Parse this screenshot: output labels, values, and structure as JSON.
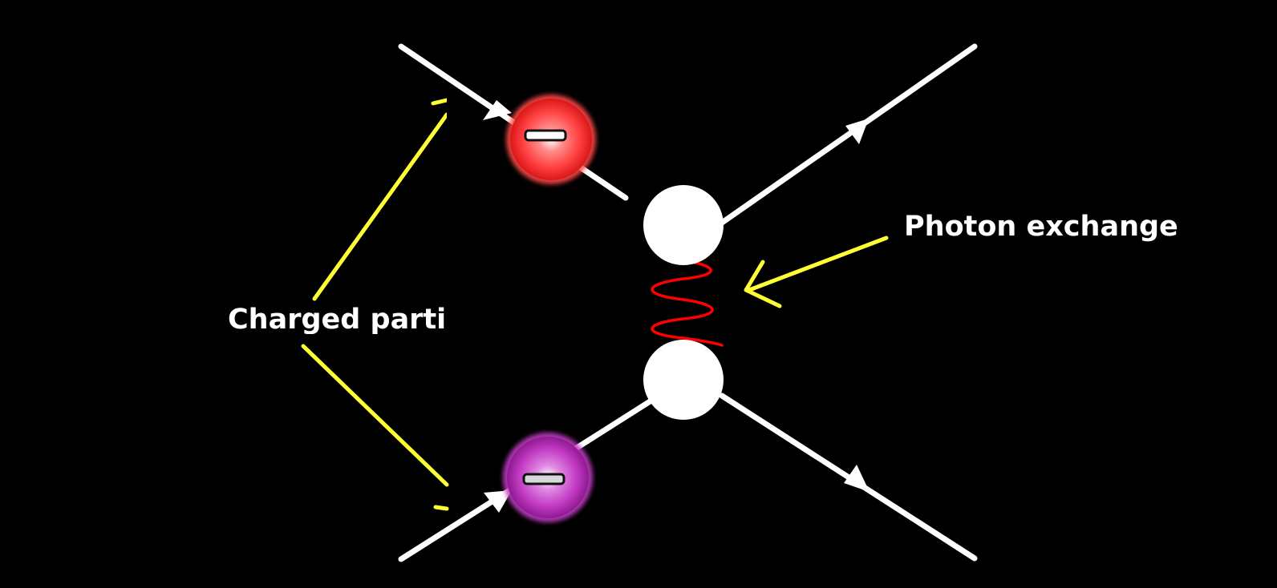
{
  "labels": {
    "photon_exchange": "Photon exchange",
    "charged_particles": "Charged partic"
  },
  "particles": [
    {
      "name": "electron-top",
      "charge_symbol": "minus",
      "color": "#ff4a4a"
    },
    {
      "name": "particle-bottom",
      "charge_symbol": "minus",
      "color": "#c23cc4"
    }
  ],
  "colors": {
    "background": "#000000",
    "lines": "#ffffff",
    "annotation_pointers": "#ffff33",
    "photon_wave": "#ff0000",
    "text": "#ffffff"
  }
}
